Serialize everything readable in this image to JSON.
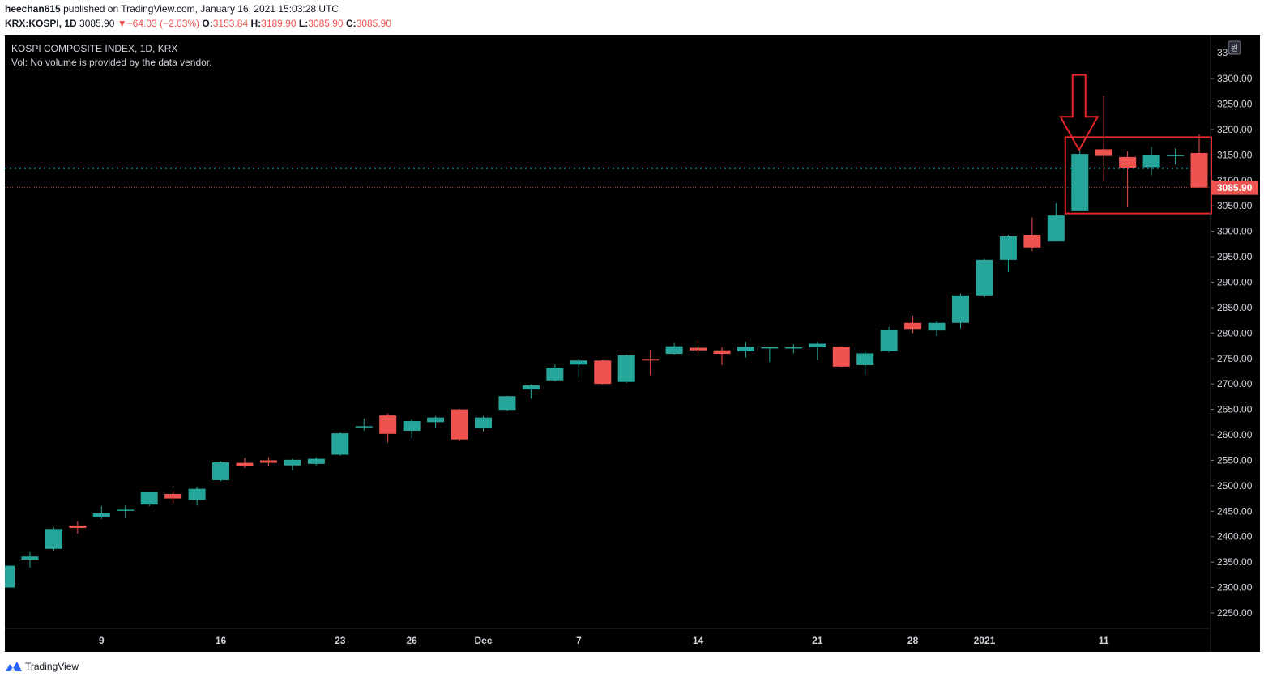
{
  "header": {
    "author": "heechan615",
    "published_text": "published on TradingView.com, January 16, 2021 15:03:28 UTC",
    "symbol": "KRX:KOSPI, 1D",
    "last": "3085.90",
    "change_arrow": "▼",
    "change": "−64.03 (−2.03%)",
    "o_label": "O:",
    "o_value": "3153.84",
    "h_label": "H:",
    "h_value": "3189.90",
    "l_label": "L:",
    "l_value": "3085.90",
    "c_label": "C:",
    "c_value": "3085.90"
  },
  "legend": {
    "title": "KOSPI COMPOSITE INDEX, 1D, KRX",
    "vol_text": "Vol: No volume is provided by the data vendor."
  },
  "footer": {
    "brand": "TradingView",
    "logo_icon": "tradingview-logo-icon"
  },
  "scale_unit": "원",
  "current_price_label": "3085.90",
  "colors": {
    "up": "#26a69a",
    "down": "#ef5350",
    "background": "#000000",
    "axis_text": "#d1d4dc",
    "annotation": "#e8262d",
    "ref_line": "#26c6da",
    "price_line": "#ef5350"
  },
  "chart_data": {
    "type": "candlestick",
    "title": "KOSPI COMPOSITE INDEX, 1D, KRX",
    "ylim": [
      2200,
      3350
    ],
    "y_ticks": [
      "2250.00",
      "2300.00",
      "2350.00",
      "2400.00",
      "2450.00",
      "2500.00",
      "2550.00",
      "2600.00",
      "2650.00",
      "2700.00",
      "2750.00",
      "2800.00",
      "2850.00",
      "2900.00",
      "2950.00",
      "3000.00",
      "3050.00",
      "3100.00",
      "3150.00",
      "3200.00",
      "3250.00",
      "3300.00"
    ],
    "y_top_partial": "33",
    "x_ticks": [
      {
        "label": "9",
        "bar": 4
      },
      {
        "label": "16",
        "bar": 9
      },
      {
        "label": "23",
        "bar": 14
      },
      {
        "label": "26",
        "bar": 17
      },
      {
        "label": "Dec",
        "bar": 20
      },
      {
        "label": "7",
        "bar": 24
      },
      {
        "label": "14",
        "bar": 29
      },
      {
        "label": "21",
        "bar": 34
      },
      {
        "label": "28",
        "bar": 38
      },
      {
        "label": "2021",
        "bar": 41
      },
      {
        "label": "11",
        "bar": 46
      }
    ],
    "ohlc": [
      [
        2300,
        2346,
        2300,
        2343
      ],
      [
        2355,
        2370,
        2339,
        2361
      ],
      [
        2376,
        2418,
        2372,
        2415
      ],
      [
        2422,
        2430,
        2406,
        2417
      ],
      [
        2438,
        2460,
        2435,
        2446
      ],
      [
        2452,
        2462,
        2436,
        2453
      ],
      [
        2463,
        2488,
        2460,
        2488
      ],
      [
        2484,
        2490,
        2466,
        2475
      ],
      [
        2472,
        2498,
        2461,
        2494
      ],
      [
        2511,
        2548,
        2509,
        2546
      ],
      [
        2545,
        2555,
        2535,
        2538
      ],
      [
        2550,
        2556,
        2538,
        2545
      ],
      [
        2540,
        2553,
        2530,
        2551
      ],
      [
        2543,
        2556,
        2540,
        2553
      ],
      [
        2561,
        2605,
        2559,
        2603
      ],
      [
        2617,
        2632,
        2608,
        2617
      ],
      [
        2638,
        2642,
        2585,
        2602
      ],
      [
        2608,
        2630,
        2593,
        2627
      ],
      [
        2625,
        2637,
        2614,
        2634
      ],
      [
        2650,
        2651,
        2589,
        2591
      ],
      [
        2613,
        2637,
        2607,
        2634
      ],
      [
        2649,
        2677,
        2647,
        2676
      ],
      [
        2689,
        2699,
        2671,
        2697
      ],
      [
        2707,
        2738,
        2705,
        2732
      ],
      [
        2738,
        2750,
        2712,
        2746
      ],
      [
        2746,
        2748,
        2699,
        2700
      ],
      [
        2704,
        2758,
        2702,
        2756
      ],
      [
        2749,
        2767,
        2717,
        2746
      ],
      [
        2759,
        2781,
        2757,
        2774
      ],
      [
        2771,
        2785,
        2760,
        2766
      ],
      [
        2766,
        2772,
        2737,
        2759
      ],
      [
        2764,
        2783,
        2752,
        2773
      ],
      [
        2770,
        2772,
        2743,
        2772
      ],
      [
        2770,
        2778,
        2760,
        2772
      ],
      [
        2772,
        2783,
        2747,
        2779
      ],
      [
        2773,
        2774,
        2733,
        2734
      ],
      [
        2737,
        2767,
        2717,
        2760
      ],
      [
        2764,
        2812,
        2762,
        2806
      ],
      [
        2820,
        2834,
        2800,
        2808
      ],
      [
        2805,
        2823,
        2794,
        2820
      ],
      [
        2820,
        2878,
        2809,
        2874
      ],
      [
        2874,
        2946,
        2870,
        2944
      ],
      [
        2944,
        2993,
        2920,
        2990
      ],
      [
        2993,
        3027,
        2961,
        2968
      ],
      [
        2980,
        3055,
        2980,
        3031
      ],
      [
        3041,
        3161,
        3041,
        3152
      ],
      [
        3161,
        3266,
        3097,
        3148
      ],
      [
        3146,
        3157,
        3047,
        3125
      ],
      [
        3126,
        3166,
        3110,
        3149
      ],
      [
        3149,
        3163,
        3131,
        3150
      ],
      [
        3153.84,
        3189.9,
        3085.9,
        3085.9
      ]
    ],
    "reference_line": 3124,
    "last_close": 3085.9
  }
}
